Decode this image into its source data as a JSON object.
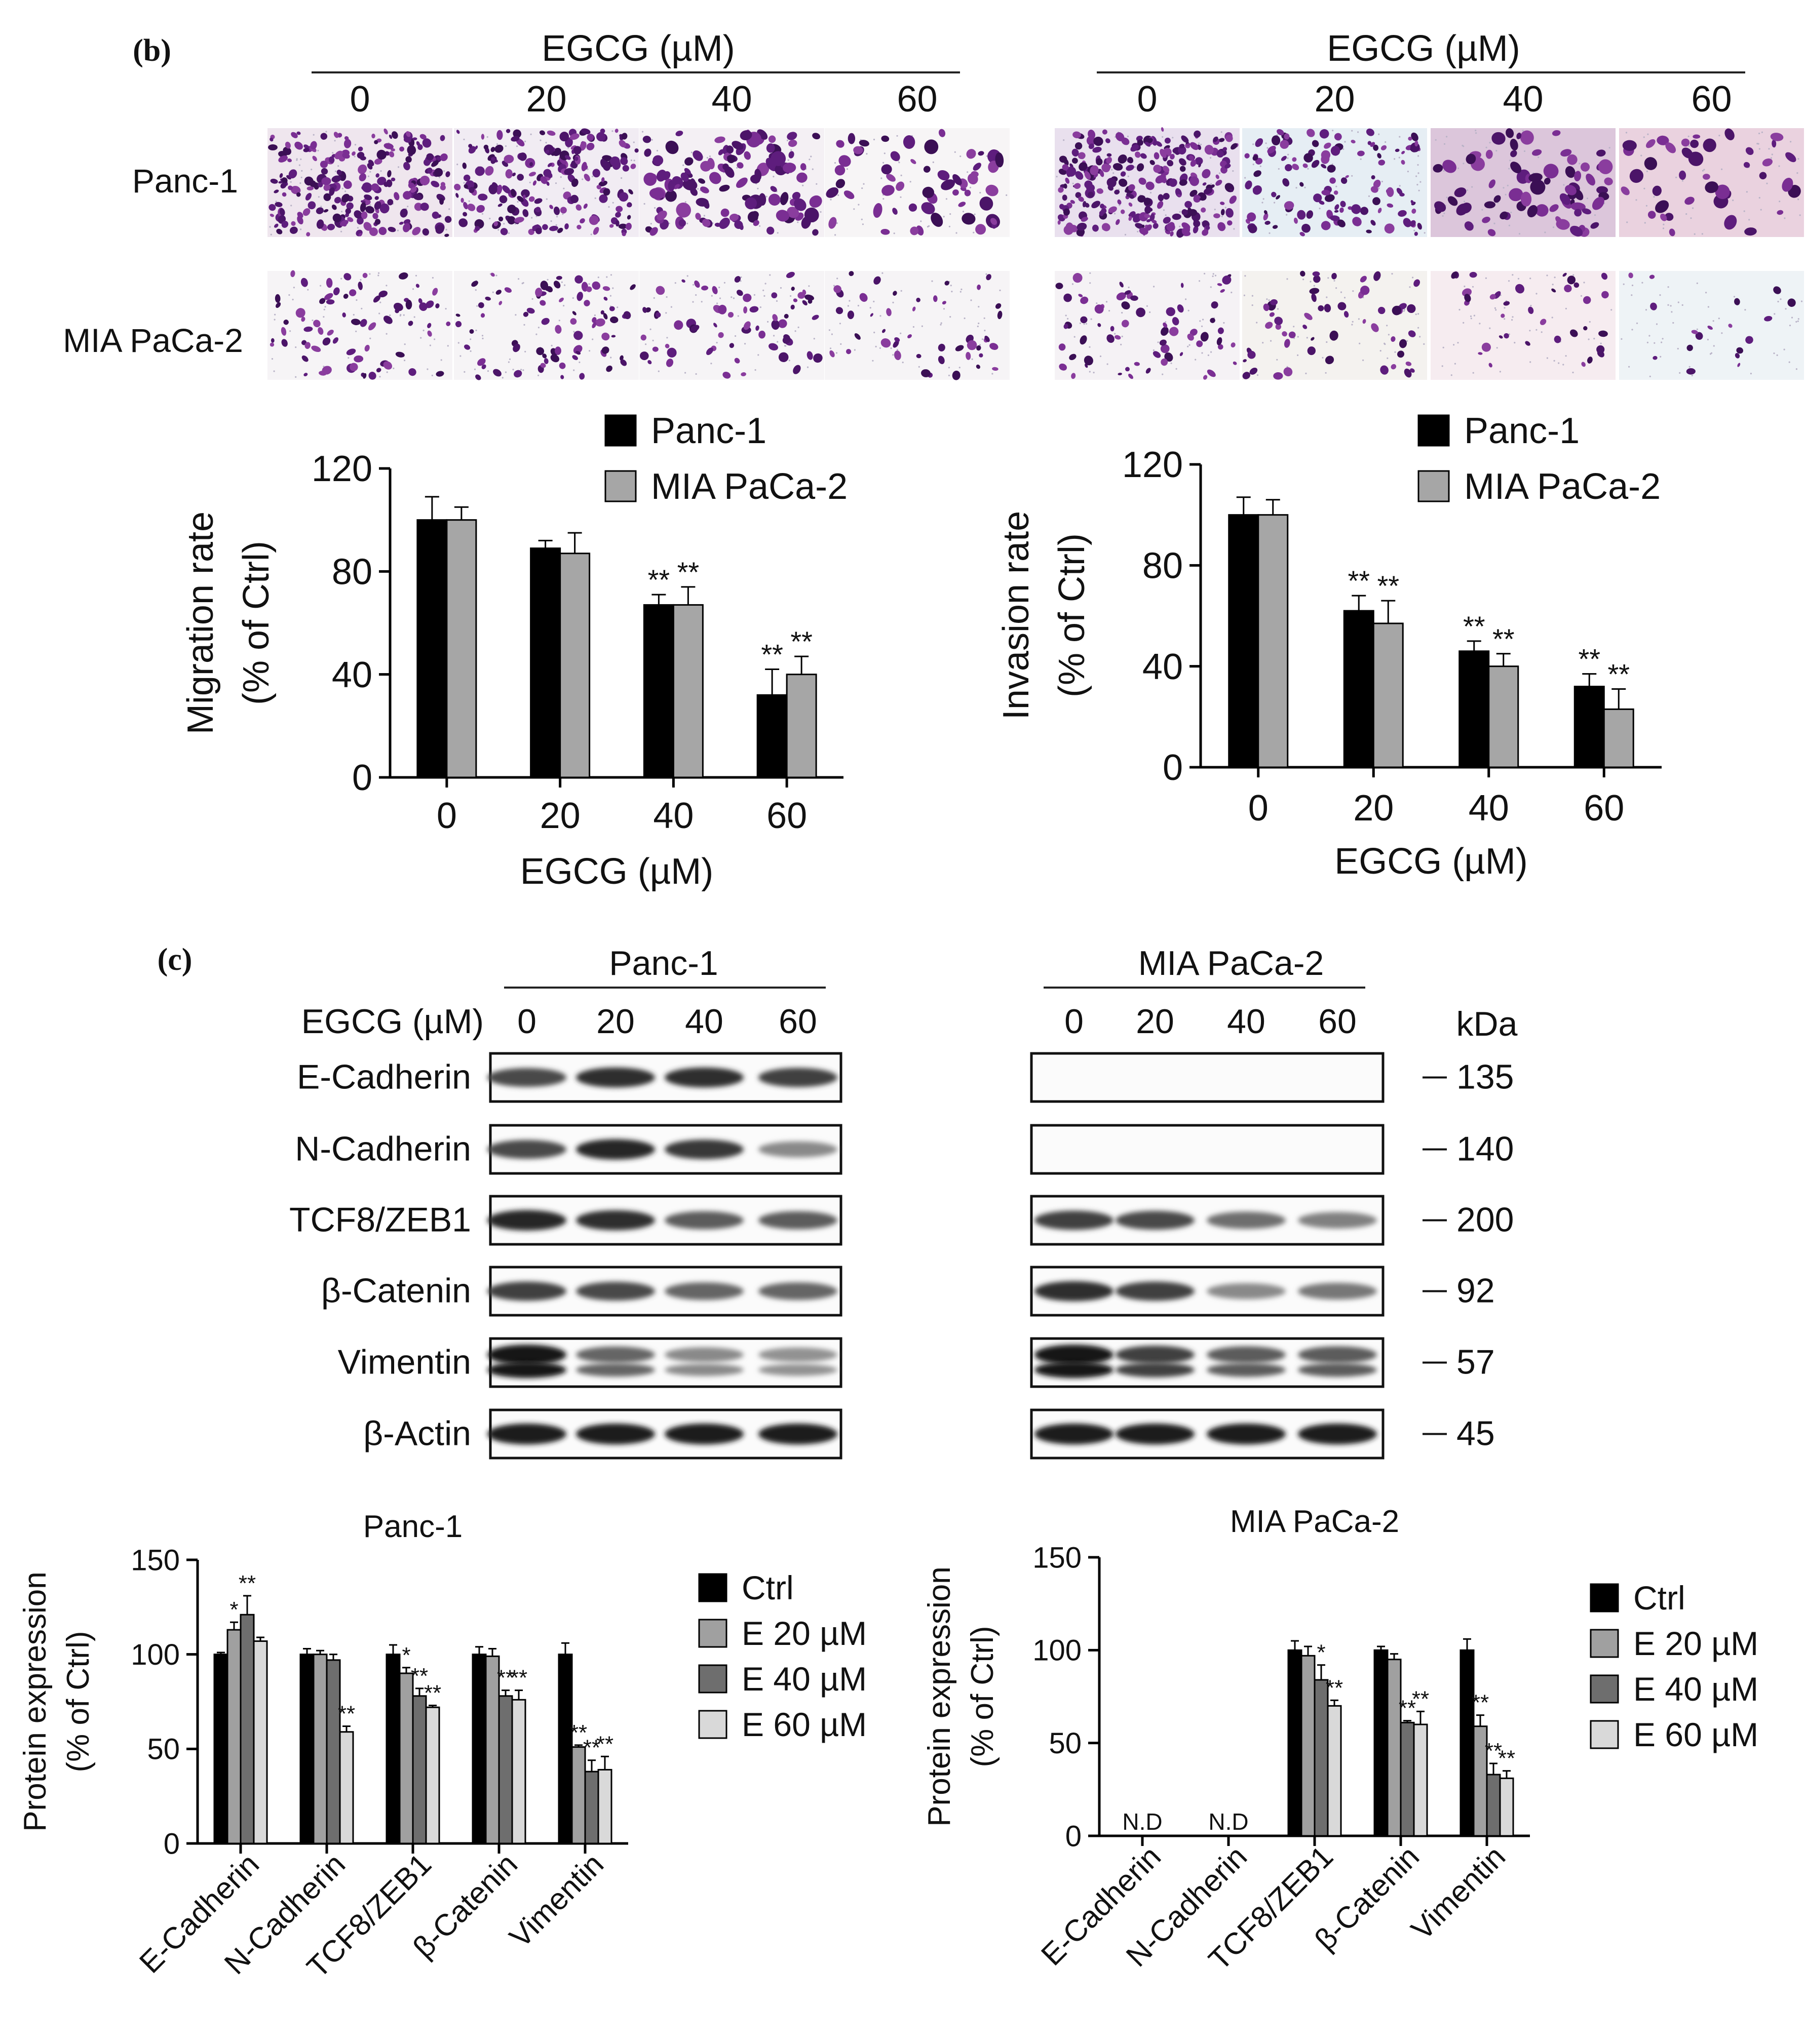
{
  "panel_b": {
    "label": "b",
    "migration_header": "EGCG (µM)",
    "invasion_header": "EGCG (µM)",
    "doses": [
      "0",
      "20",
      "40",
      "60"
    ],
    "rows": [
      "Panc-1",
      "MIA PaCa-2"
    ],
    "stain_color": "#6a1f8a"
  },
  "panel_c": {
    "label": "c",
    "blot_dose_label": "EGCG (µM)",
    "kda_label": "kDa",
    "cell_lines": [
      "Panc-1",
      "MIA PaCa-2"
    ],
    "doses": [
      "0",
      "20",
      "40",
      "60"
    ],
    "proteins": [
      "E-Cadherin",
      "N-Cadherin",
      "TCF8/ZEB1",
      "β-Catenin",
      "Vimentin",
      "β-Actin"
    ],
    "kda": [
      "135",
      "140",
      "200",
      "92",
      "57",
      "45"
    ],
    "band_intensity": {
      "Panc-1": [
        [
          0.7,
          0.85,
          0.85,
          0.75
        ],
        [
          0.7,
          0.9,
          0.8,
          0.35
        ],
        [
          0.9,
          0.85,
          0.6,
          0.6
        ],
        [
          0.75,
          0.7,
          0.55,
          0.55
        ],
        [
          1.0,
          0.55,
          0.35,
          0.3
        ],
        [
          0.95,
          0.95,
          0.95,
          0.95
        ]
      ],
      "MIA PaCa-2": [
        [
          0.03,
          0.03,
          0.03,
          0.03
        ],
        [
          0.02,
          0.02,
          0.02,
          0.02
        ],
        [
          0.75,
          0.7,
          0.5,
          0.4
        ],
        [
          0.85,
          0.75,
          0.35,
          0.45
        ],
        [
          1.0,
          0.75,
          0.6,
          0.6
        ],
        [
          0.95,
          0.95,
          0.95,
          0.95
        ]
      ]
    }
  },
  "chart_data": [
    {
      "type": "bar",
      "id": "migration",
      "categories": [
        "0",
        "20",
        "40",
        "60"
      ],
      "series": [
        {
          "name": "Panc-1",
          "color": "#000000",
          "values": [
            100,
            89,
            67,
            32
          ],
          "errors": [
            9,
            3,
            4,
            10
          ],
          "labels": [
            "",
            "",
            "**",
            "**"
          ]
        },
        {
          "name": "MIA PaCa-2",
          "color": "#a6a6a6",
          "values": [
            100,
            87,
            67,
            40
          ],
          "errors": [
            5,
            8,
            7,
            7
          ],
          "labels": [
            "",
            "",
            "**",
            "**"
          ]
        }
      ],
      "xlabel": "EGCG (µM)",
      "ylabel": [
        "Migration rate",
        "(% of Ctrl)"
      ],
      "ylim": [
        0,
        120
      ],
      "yticks": [
        0,
        40,
        80,
        120
      ],
      "legend": "top-right"
    },
    {
      "type": "bar",
      "id": "invasion",
      "categories": [
        "0",
        "20",
        "40",
        "60"
      ],
      "series": [
        {
          "name": "Panc-1",
          "color": "#000000",
          "values": [
            100,
            62,
            46,
            32
          ],
          "errors": [
            7,
            6,
            4,
            5
          ],
          "labels": [
            "",
            "**",
            "**",
            "**"
          ]
        },
        {
          "name": "MIA PaCa-2",
          "color": "#a6a6a6",
          "values": [
            100,
            57,
            40,
            23
          ],
          "errors": [
            6,
            9,
            5,
            8
          ],
          "labels": [
            "",
            "**",
            "**",
            "**"
          ]
        }
      ],
      "xlabel": "EGCG (µM)",
      "ylabel": [
        "Invasion rate",
        "(% of Ctrl)"
      ],
      "ylim": [
        0,
        120
      ],
      "yticks": [
        0,
        40,
        80,
        120
      ],
      "legend": "top-right"
    },
    {
      "type": "bar",
      "id": "panc1_protein",
      "title": "Panc-1",
      "categories": [
        "E-Cadherin",
        "N-Cadherin",
        "TCF8/ZEB1",
        "β-Catenin",
        "Vimentin"
      ],
      "series": [
        {
          "name": "Ctrl",
          "color": "#000000",
          "values": [
            100,
            100,
            100,
            100,
            100
          ],
          "errors": [
            1,
            3,
            5,
            4,
            6
          ],
          "labels": [
            "",
            "",
            "",
            "",
            ""
          ]
        },
        {
          "name": "E 20 µM",
          "color": "#a0a0a0",
          "values": [
            113,
            100,
            90,
            99,
            51
          ],
          "errors": [
            4,
            2,
            3,
            4,
            1
          ],
          "labels": [
            "*",
            "",
            "*",
            "",
            "**"
          ]
        },
        {
          "name": "E 40 µM",
          "color": "#6e6e6e",
          "values": [
            121,
            97,
            78,
            78,
            38
          ],
          "errors": [
            10,
            3,
            4,
            3,
            6
          ],
          "labels": [
            "**",
            "",
            "**",
            "**",
            "**"
          ]
        },
        {
          "name": "E 60 µM",
          "color": "#d9d9d9",
          "values": [
            107,
            59,
            72,
            76,
            39
          ],
          "errors": [
            2,
            3,
            1,
            5,
            7
          ],
          "labels": [
            "",
            "**",
            "**",
            "**",
            "**"
          ]
        }
      ],
      "ylabel": [
        "Protein expression",
        "(% of Ctrl)"
      ],
      "ylim": [
        0,
        150
      ],
      "yticks": [
        0,
        50,
        100,
        150
      ],
      "legend": "right"
    },
    {
      "type": "bar",
      "id": "mia_protein",
      "title": "MIA PaCa-2",
      "categories": [
        "E-Cadherin",
        "N-Cadherin",
        "TCF8/ZEB1",
        "β-Catenin",
        "Vimentin"
      ],
      "not_detected": [
        true,
        true,
        false,
        false,
        false
      ],
      "nd_label": "N.D",
      "series": [
        {
          "name": "Ctrl",
          "color": "#000000",
          "values": [
            0,
            0,
            100,
            100,
            100
          ],
          "errors": [
            0,
            0,
            5,
            2,
            6
          ],
          "labels": [
            "",
            "",
            "",
            "",
            ""
          ]
        },
        {
          "name": "E 20 µM",
          "color": "#a0a0a0",
          "values": [
            0,
            0,
            97,
            95,
            59
          ],
          "errors": [
            0,
            0,
            5,
            3,
            6
          ],
          "labels": [
            "",
            "",
            "",
            "",
            "**"
          ]
        },
        {
          "name": "E 40 µM",
          "color": "#6e6e6e",
          "values": [
            0,
            0,
            84,
            61,
            33
          ],
          "errors": [
            0,
            0,
            8,
            1,
            6
          ],
          "labels": [
            "",
            "",
            "*",
            "**",
            "**"
          ]
        },
        {
          "name": "E 60 µM",
          "color": "#d9d9d9",
          "values": [
            0,
            0,
            70,
            60,
            31
          ],
          "errors": [
            0,
            0,
            3,
            7,
            4
          ],
          "labels": [
            "",
            "",
            "**",
            "**",
            "**"
          ]
        }
      ],
      "ylabel": [
        "Protein expression",
        "(% of Ctrl)"
      ],
      "ylim": [
        0,
        150
      ],
      "yticks": [
        0,
        50,
        100,
        150
      ],
      "legend": "right"
    }
  ]
}
